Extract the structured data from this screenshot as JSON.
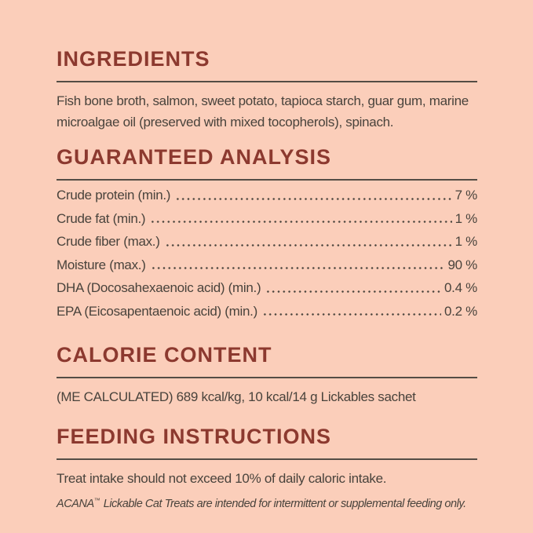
{
  "theme": {
    "background": "#fbceba",
    "heading_color": "#8c392f",
    "text_color": "#49433c",
    "rule_color": "#544d45"
  },
  "sections": {
    "ingredients": {
      "title": "INGREDIENTS",
      "lines": [
        "Fish bone broth, salmon, sweet potato, tapioca starch, guar gum, marine",
        "microalgae oil (preserved with mixed tocopherols), spinach."
      ]
    },
    "guaranteed_analysis": {
      "title": "GUARANTEED ANALYSIS",
      "rows": [
        {
          "label": "Crude protein (min.)",
          "value": "7 %"
        },
        {
          "label": "Crude fat (min.)",
          "value": "1 %"
        },
        {
          "label": "Crude fiber (max.)",
          "value": "1 %"
        },
        {
          "label": "Moisture (max.)",
          "value": "90 %"
        },
        {
          "label": "DHA (Docosahexaenoic acid) (min.)",
          "value": "0.4 %"
        },
        {
          "label": "EPA (Eicosapentaenoic acid) (min.)",
          "value": "0.2 %"
        }
      ]
    },
    "calorie_content": {
      "title": "CALORIE CONTENT",
      "text": "(ME CALCULATED) 689 kcal/kg, 10 kcal/14 g Lickables sachet"
    },
    "feeding_instructions": {
      "title": "FEEDING INSTRUCTIONS",
      "text": "Treat intake should not exceed 10% of daily caloric intake.",
      "footnote_brand": "ACANA",
      "footnote_tm": "™",
      "footnote_text": "Lickable Cat Treats are intended for intermittent or supplemental feeding only."
    }
  }
}
